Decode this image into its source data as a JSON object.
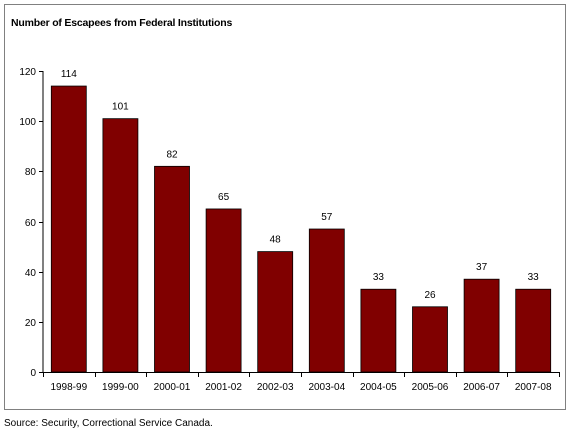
{
  "chart_data": {
    "type": "bar",
    "title": "Number of Escapees from Federal Institutions",
    "xlabel": "",
    "ylabel": "",
    "categories": [
      "1998-99",
      "1999-00",
      "2000-01",
      "2001-02",
      "2002-03",
      "2003-04",
      "2004-05",
      "2005-06",
      "2006-07",
      "2007-08"
    ],
    "values": [
      114,
      101,
      82,
      65,
      48,
      57,
      33,
      26,
      37,
      33
    ],
    "data_labels": [
      "114",
      "101",
      "82",
      "65",
      "48",
      "57",
      "33",
      "26",
      "37",
      "33"
    ],
    "ylim": [
      0,
      120
    ],
    "yticks": [
      0,
      20,
      40,
      60,
      80,
      100,
      120
    ],
    "ytick_labels": [
      "0",
      "20",
      "40",
      "60",
      "80",
      "100",
      "120"
    ],
    "grid": false,
    "legend": "none",
    "bar_color": "#800000"
  },
  "source": "Source:  Security, Correctional Service Canada."
}
